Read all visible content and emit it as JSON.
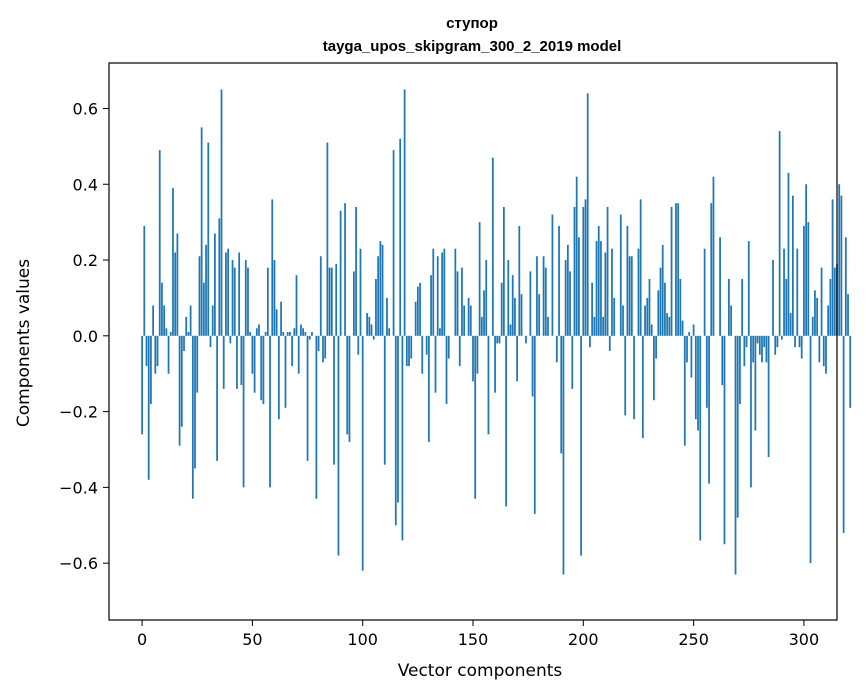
{
  "chart_data": {
    "type": "bar",
    "title": "ступор",
    "subtitle": "tayga_upos_skipgram_300_2_2019 model",
    "xlabel": "Vector components",
    "ylabel": "Components values",
    "xlim": [
      -15,
      315
    ],
    "ylim": [
      -0.75,
      0.72
    ],
    "xticks": [
      0,
      50,
      100,
      150,
      200,
      250,
      300
    ],
    "xtick_labels": [
      "0",
      "50",
      "100",
      "150",
      "200",
      "250",
      "300"
    ],
    "yticks": [
      -0.6,
      -0.4,
      -0.2,
      0.0,
      0.2,
      0.4,
      0.6
    ],
    "ytick_labels": [
      "−0.6",
      "−0.4",
      "−0.2",
      "0.0",
      "0.2",
      "0.4",
      "0.6"
    ],
    "bar_color": "#1f77b4",
    "values": [
      -0.26,
      0.29,
      -0.08,
      -0.38,
      -0.18,
      0.08,
      -0.1,
      -0.08,
      0.49,
      0.14,
      0.08,
      0.02,
      -0.1,
      0.01,
      0.39,
      0.22,
      0.27,
      -0.29,
      -0.24,
      -0.04,
      0.05,
      0.01,
      0.08,
      -0.43,
      -0.35,
      -0.15,
      0.21,
      0.55,
      0.14,
      0.24,
      0.51,
      -0.03,
      0.08,
      0.27,
      -0.33,
      0.31,
      0.65,
      -0.14,
      0.22,
      0.23,
      -0.02,
      0.2,
      0.18,
      -0.14,
      0.22,
      -0.13,
      -0.4,
      0.2,
      0.18,
      0.01,
      -0.1,
      -0.15,
      0.02,
      0.03,
      -0.17,
      -0.18,
      0.01,
      0.18,
      -0.4,
      0.36,
      0.2,
      0.07,
      -0.22,
      0.09,
      0.01,
      -0.19,
      0.01,
      0.01,
      -0.08,
      0.02,
      0.16,
      -0.1,
      0.03,
      0.02,
      0.01,
      -0.33,
      -0.01,
      0.01,
      0.0,
      -0.43,
      -0.04,
      0.21,
      -0.07,
      -0.06,
      0.51,
      0.18,
      0.18,
      -0.34,
      0.19,
      -0.58,
      0.33,
      0.0,
      0.35,
      -0.26,
      -0.28,
      0.0,
      0.17,
      0.34,
      -0.05,
      0.23,
      -0.62,
      0.0,
      0.06,
      0.05,
      0.03,
      -0.01,
      0.15,
      0.21,
      0.25,
      0.24,
      -0.34,
      0.1,
      0.02,
      0.0,
      0.49,
      -0.5,
      -0.44,
      0.52,
      -0.54,
      0.65,
      -0.08,
      -0.08,
      -0.06,
      0.0,
      0.09,
      0.13,
      0.14,
      -0.1,
      0.0,
      -0.05,
      -0.28,
      0.16,
      0.23,
      -0.15,
      0.21,
      0.02,
      0.22,
      0.23,
      -0.18,
      -0.06,
      0.0,
      0.0,
      0.23,
      0.17,
      -0.08,
      0.18,
      0.08,
      0.0,
      0.1,
      0.08,
      -0.12,
      -0.43,
      -0.1,
      0.3,
      0.05,
      0.12,
      0.2,
      -0.26,
      0.0,
      0.47,
      -0.15,
      -0.02,
      -0.02,
      0.14,
      0.34,
      -0.45,
      0.2,
      0.03,
      0.16,
      0.1,
      -0.12,
      0.29,
      0.11,
      0.0,
      -0.02,
      0.0,
      0.17,
      -0.16,
      -0.47,
      0.21,
      0.11,
      0.0,
      0.21,
      0.18,
      0.05,
      0.0,
      0.32,
      0.0,
      -0.07,
      0.29,
      -0.31,
      -0.63,
      0.2,
      0.24,
      0.17,
      -0.14,
      0.34,
      0.42,
      0.26,
      -0.58,
      0.34,
      0.36,
      0.64,
      -0.03,
      0.14,
      0.05,
      0.25,
      0.29,
      0.25,
      0.05,
      0.22,
      0.34,
      -0.04,
      0.23,
      0.1,
      0.0,
      0.0,
      0.32,
      0.08,
      -0.21,
      0.29,
      0.21,
      0.21,
      -0.22,
      0.0,
      0.23,
      0.36,
      -0.27,
      0.08,
      0.1,
      0.15,
      0.03,
      -0.17,
      -0.06,
      0.12,
      0.18,
      0.24,
      0.14,
      0.06,
      0.05,
      0.34,
      0.0,
      0.35,
      0.35,
      0.15,
      0.04,
      -0.29,
      -0.07,
      0.01,
      -0.11,
      0.03,
      -0.22,
      -0.25,
      -0.54,
      0.0,
      0.23,
      -0.19,
      -0.39,
      0.35,
      0.42,
      0.0,
      0.0,
      0.26,
      -0.13,
      -0.55,
      0.0,
      0.15,
      0.08,
      0.0,
      -0.63,
      -0.48,
      -0.18,
      0.15,
      -0.08,
      -0.03,
      0.25,
      -0.4,
      -0.07,
      -0.25,
      -0.02,
      -0.05,
      -0.07,
      -0.03,
      -0.07,
      -0.32,
      0.0,
      0.2,
      -0.05,
      -0.03,
      0.54,
      -0.01,
      0.23,
      0.15,
      0.43,
      0.06,
      0.37,
      -0.03,
      0.23,
      -0.03,
      -0.06,
      0.29,
      0.4,
      0.3,
      -0.6,
      0.05,
      0.12,
      0.1,
      -0.07,
      0.18,
      -0.08,
      -0.1,
      0.08,
      0.15,
      0.36,
      0.18,
      0.19,
      0.4,
      0.37,
      -0.52,
      0.26,
      0.11,
      -0.19
    ]
  }
}
